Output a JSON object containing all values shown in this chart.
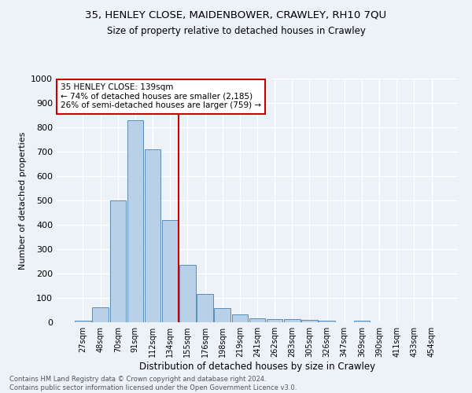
{
  "title1": "35, HENLEY CLOSE, MAIDENBOWER, CRAWLEY, RH10 7QU",
  "title2": "Size of property relative to detached houses in Crawley",
  "xlabel": "Distribution of detached houses by size in Crawley",
  "ylabel": "Number of detached properties",
  "bar_labels": [
    "27sqm",
    "48sqm",
    "70sqm",
    "91sqm",
    "112sqm",
    "134sqm",
    "155sqm",
    "176sqm",
    "198sqm",
    "219sqm",
    "241sqm",
    "262sqm",
    "283sqm",
    "305sqm",
    "326sqm",
    "347sqm",
    "369sqm",
    "390sqm",
    "411sqm",
    "433sqm",
    "454sqm"
  ],
  "bar_values": [
    8,
    60,
    500,
    830,
    710,
    420,
    235,
    115,
    57,
    32,
    15,
    13,
    12,
    10,
    5,
    0,
    8,
    0,
    0,
    0,
    0
  ],
  "bar_color": "#b8d0e8",
  "bar_edge_color": "#5b8db8",
  "vline_x_index": 5.5,
  "vline_color": "#cc0000",
  "annotation_text": "35 HENLEY CLOSE: 139sqm\n← 74% of detached houses are smaller (2,185)\n26% of semi-detached houses are larger (759) →",
  "annotation_box_color": "#ffffff",
  "annotation_box_edge": "#cc0000",
  "ylim": [
    0,
    1000
  ],
  "yticks": [
    0,
    100,
    200,
    300,
    400,
    500,
    600,
    700,
    800,
    900,
    1000
  ],
  "footnote": "Contains HM Land Registry data © Crown copyright and database right 2024.\nContains public sector information licensed under the Open Government Licence v3.0.",
  "bg_color": "#edf2f9"
}
